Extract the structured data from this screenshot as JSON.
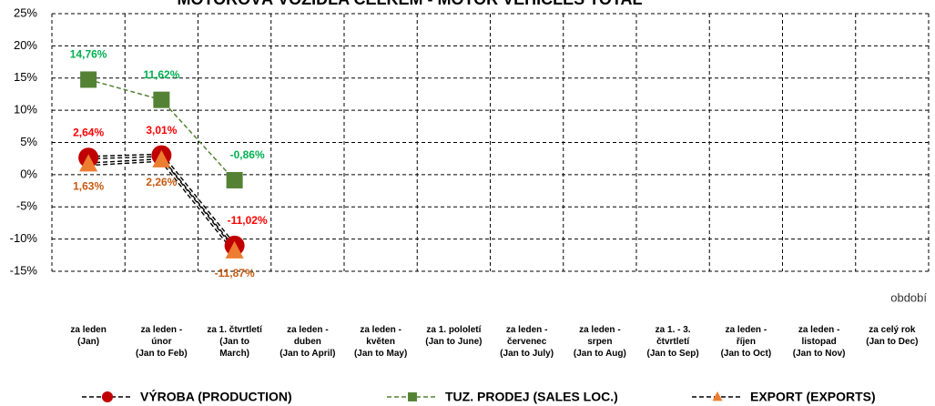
{
  "chart_data": {
    "type": "line",
    "title": "MOTOROVÁ VOZIDLA CELKEM - MOTOR VEHICLES TOTAL",
    "x_label": "období",
    "categories": [
      "za leden\n(Jan)",
      "za leden -\núnor\n(Jan to Feb)",
      "za 1. čtvrtletí\n(Jan to\nMarch)",
      "za leden -\nduben\n(Jan to April)",
      "za leden -\nkvěten\n(Jan to May)",
      "za 1. pololetí\n(Jan to June)",
      "za leden -\nčervenec\n(Jan to July)",
      "za leden -\nsrpen\n(Jan to Aug)",
      "za 1. - 3.\nčtvrtletí\n(Jan to Sep)",
      "za leden -\nříjen\n(Jan to Oct)",
      "za leden -\nlistopad\n(Jan to Nov)",
      "za celý rok\n(Jan to Dec)"
    ],
    "series": [
      {
        "name": "VÝROBA (PRODUCTION)",
        "color": "#c00000",
        "label_color": "#ff0000",
        "marker": "circle",
        "values": [
          2.64,
          3.01,
          -11.02,
          null,
          null,
          null,
          null,
          null,
          null,
          null,
          null,
          null
        ],
        "value_labels": [
          "2,64%",
          "3,01%",
          "-11,02%",
          null,
          null,
          null,
          null,
          null,
          null,
          null,
          null,
          null
        ]
      },
      {
        "name": "TUZ. PRODEJ (SALES LOC.)",
        "color": "#548235",
        "label_color": "#00b050",
        "marker": "square",
        "values": [
          14.76,
          11.62,
          -0.86,
          null,
          null,
          null,
          null,
          null,
          null,
          null,
          null,
          null
        ],
        "value_labels": [
          "14,76%",
          "11,62%",
          "-0,86%",
          null,
          null,
          null,
          null,
          null,
          null,
          null,
          null,
          null
        ]
      },
      {
        "name": "EXPORT (EXPORTS)",
        "color": "#ed7d31",
        "label_color": "#c55a11",
        "marker": "triangle",
        "values": [
          1.63,
          2.26,
          -11.87,
          null,
          null,
          null,
          null,
          null,
          null,
          null,
          null,
          null
        ],
        "value_labels": [
          "1,63%",
          "2,26%",
          "-11,87%",
          null,
          null,
          null,
          null,
          null,
          null,
          null,
          null,
          null
        ]
      }
    ],
    "ylim": [
      -15,
      25
    ],
    "yticks": [
      {
        "value": -15,
        "label": "-15%"
      },
      {
        "value": -10,
        "label": "-10%"
      },
      {
        "value": -5,
        "label": "-5%"
      },
      {
        "value": 0,
        "label": "0%"
      },
      {
        "value": 5,
        "label": "5%"
      },
      {
        "value": 10,
        "label": "10%"
      },
      {
        "value": 15,
        "label": "15%"
      },
      {
        "value": 20,
        "label": "20%"
      },
      {
        "value": 25,
        "label": "25%"
      }
    ],
    "grid": true,
    "legend": "bottom"
  }
}
